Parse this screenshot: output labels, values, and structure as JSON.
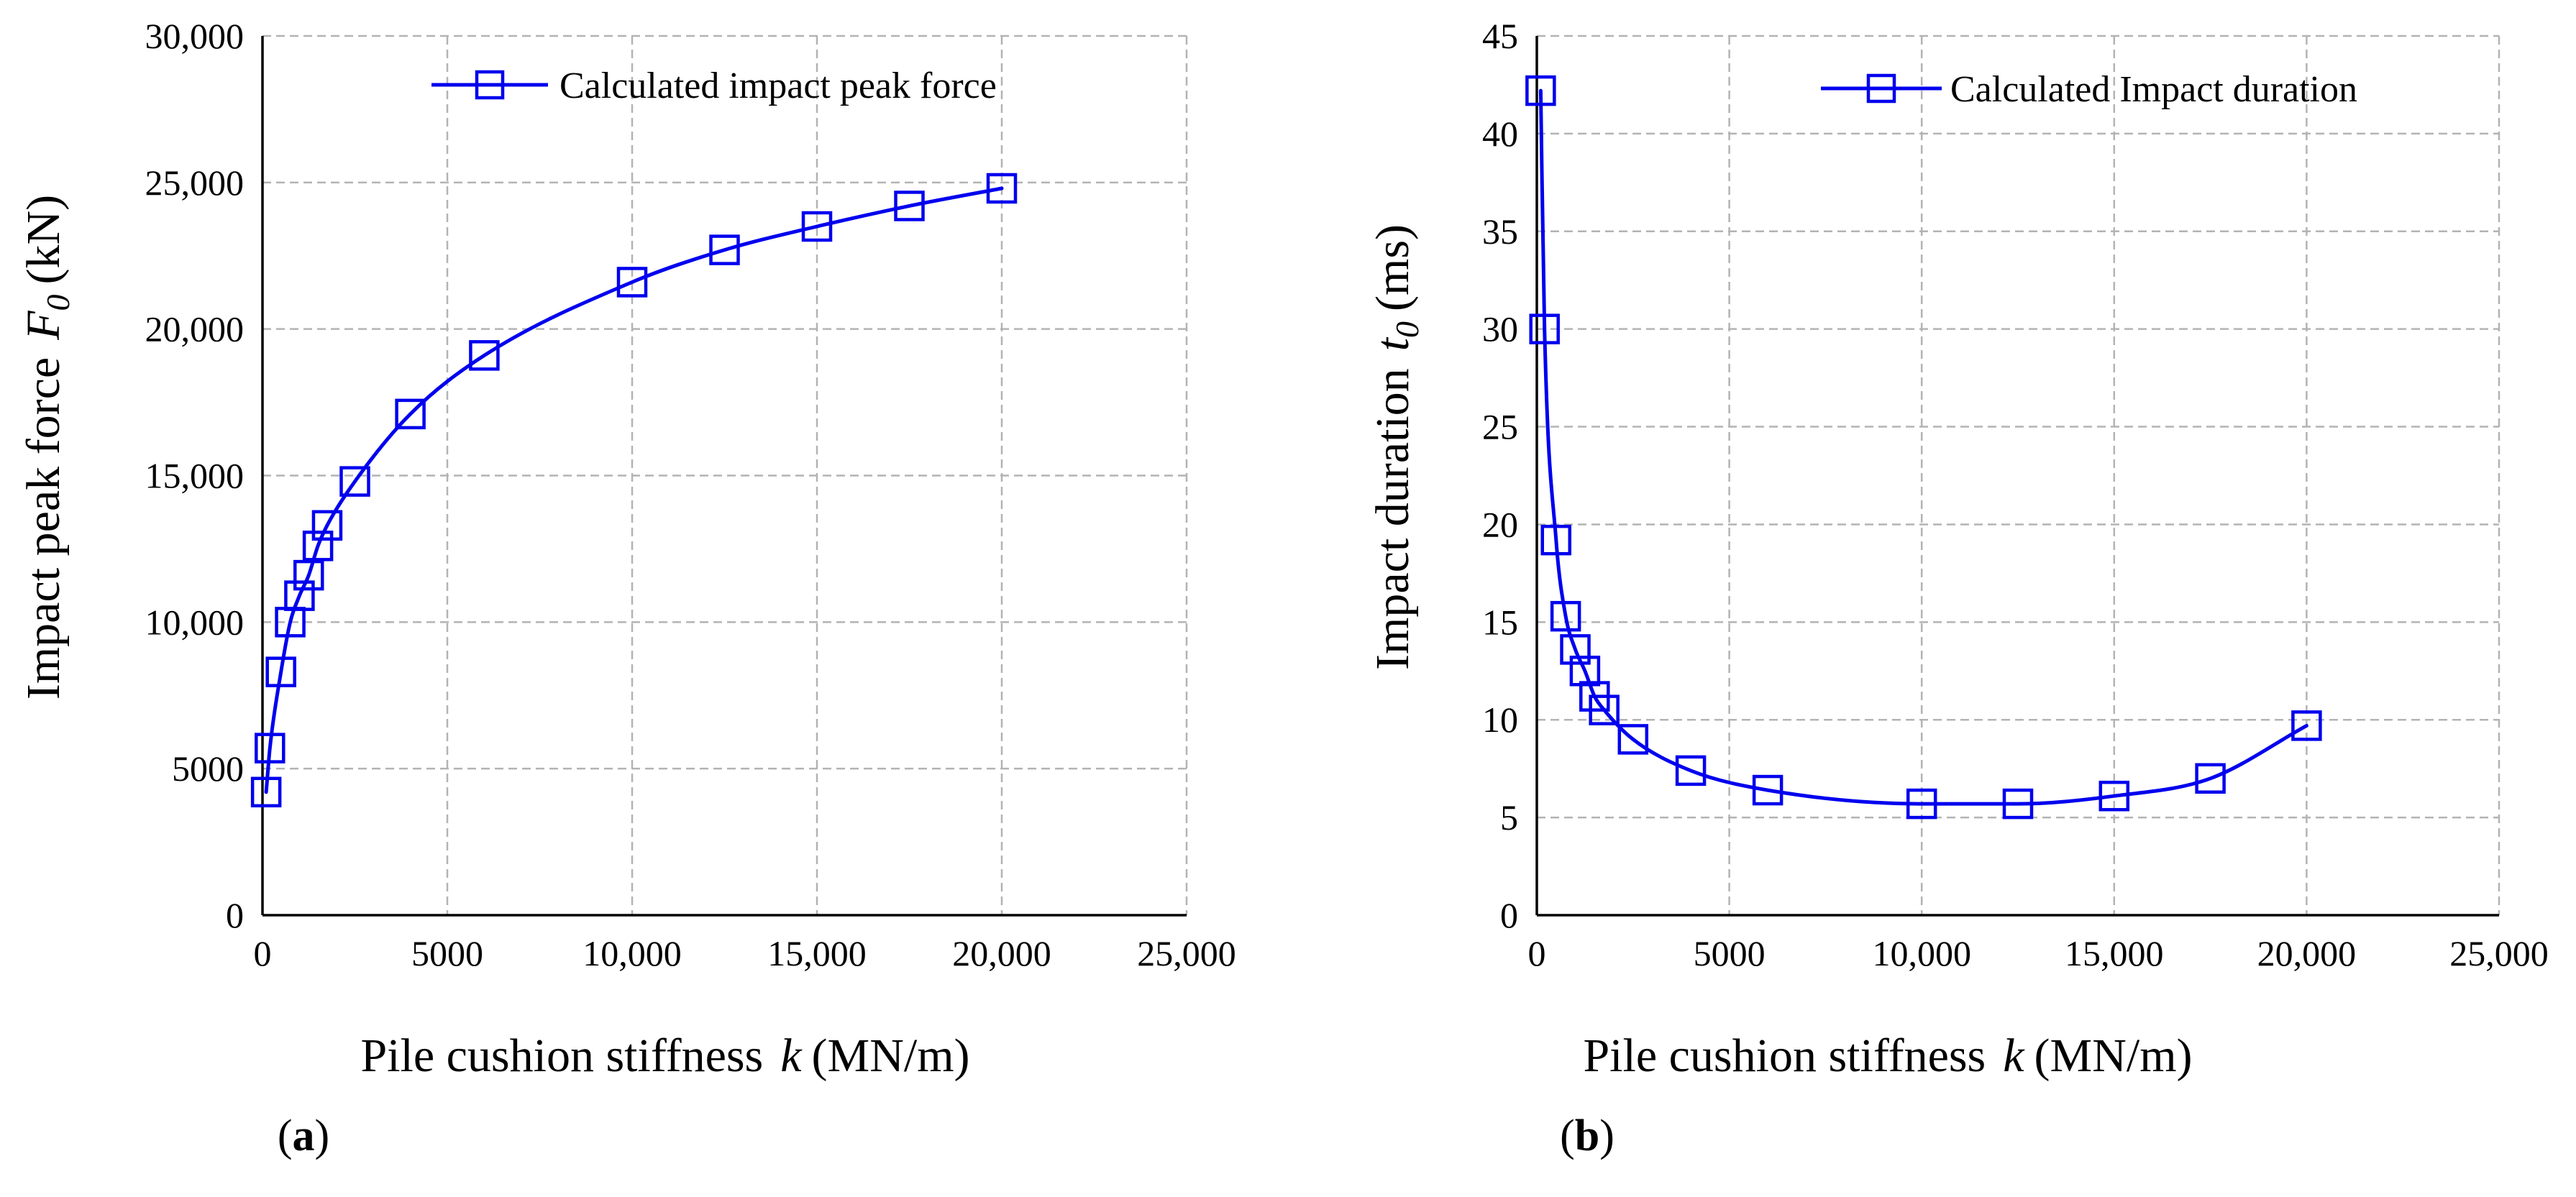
{
  "colors": {
    "series": "#0000ee",
    "grid": "#b3b3b3",
    "axis": "#000000"
  },
  "chart_data": [
    {
      "type": "line",
      "panel_label": {
        "open": "(",
        "letter": "a",
        "close": ")"
      },
      "title": "",
      "xlabel": {
        "main": "Pile cushion stiffness",
        "var": "k",
        "units": "(MN/m)"
      },
      "ylabel": {
        "main": "Impact peak force",
        "var": "F",
        "sub": "0",
        "units": "(kN)"
      },
      "xlim": [
        0,
        25000
      ],
      "ylim": [
        0,
        30000
      ],
      "xticks": [
        0,
        5000,
        10000,
        15000,
        20000,
        25000
      ],
      "xtick_labels": [
        "0",
        "5000",
        "10,000",
        "15,000",
        "20,000",
        "25,000"
      ],
      "yticks": [
        0,
        5000,
        10000,
        15000,
        20000,
        25000,
        30000
      ],
      "ytick_labels": [
        "0",
        "5000",
        "10,000",
        "15,000",
        "20,000",
        "25,000",
        "30,000"
      ],
      "grid": true,
      "legend_position": "top-right",
      "series": [
        {
          "name": "Calculated impact peak force",
          "marker": "square",
          "x": [
            100,
            200,
            500,
            750,
            1000,
            1250,
            1500,
            1750,
            2500,
            4000,
            6000,
            10000,
            12500,
            15000,
            17500,
            20000
          ],
          "y": [
            4200,
            5700,
            8300,
            10000,
            10900,
            11600,
            12600,
            13300,
            14800,
            17100,
            19100,
            21600,
            22700,
            23500,
            24200,
            24800
          ]
        }
      ]
    },
    {
      "type": "line",
      "panel_label": {
        "open": "(",
        "letter": "b",
        "close": ")"
      },
      "title": "",
      "xlabel": {
        "main": "Pile cushion stiffness",
        "var": "k",
        "units": "(MN/m)"
      },
      "ylabel": {
        "main": "Impact duration",
        "var": "t",
        "sub": "0",
        "units": "(ms)"
      },
      "xlim": [
        0,
        25000
      ],
      "ylim": [
        0,
        45
      ],
      "xticks": [
        0,
        5000,
        10000,
        15000,
        20000,
        25000
      ],
      "xtick_labels": [
        "0",
        "5000",
        "10,000",
        "15,000",
        "20,000",
        "25,000"
      ],
      "yticks": [
        0,
        5,
        10,
        15,
        20,
        25,
        30,
        35,
        40,
        45
      ],
      "ytick_labels": [
        "0",
        "5",
        "10",
        "15",
        "20",
        "25",
        "30",
        "35",
        "40",
        "45"
      ],
      "grid": true,
      "legend_position": "top-right",
      "series": [
        {
          "name": "Calculated Impact duration",
          "marker": "square",
          "x": [
            100,
            200,
            500,
            750,
            1000,
            1250,
            1500,
            1750,
            2500,
            4000,
            6000,
            10000,
            12500,
            15000,
            17500,
            20000
          ],
          "y": [
            42.2,
            30.0,
            19.2,
            15.3,
            13.6,
            12.5,
            11.2,
            10.5,
            9.0,
            7.4,
            6.4,
            5.7,
            5.7,
            6.1,
            7.0,
            9.7
          ]
        }
      ]
    }
  ]
}
